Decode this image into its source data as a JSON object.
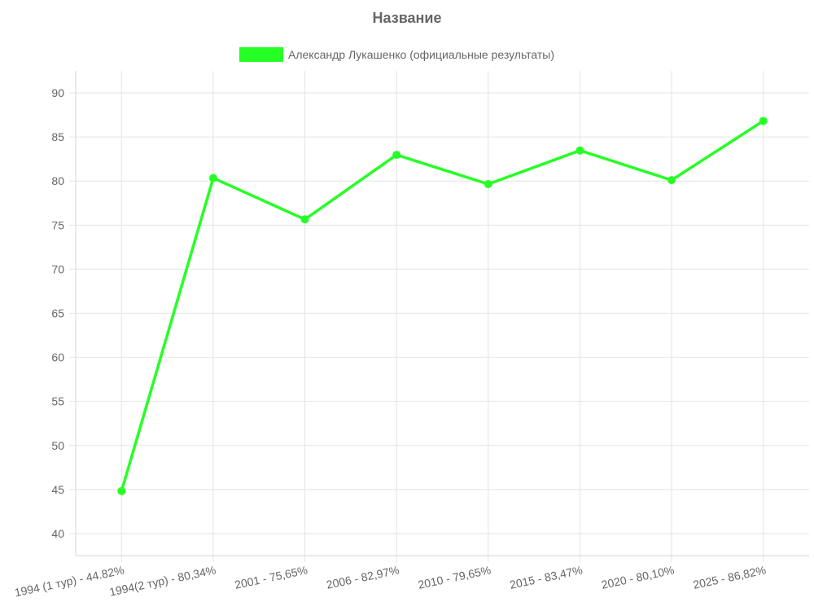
{
  "chart_data": {
    "type": "line",
    "title": "Название",
    "xlabel": "",
    "ylabel": "",
    "categories": [
      "1994 (1 тур) - 44.82%",
      "1994(2 тур) - 80,34%",
      "2001 - 75,65%",
      "2006 - 82,97%",
      "2010 - 79,65%",
      "2015 - 83,47%",
      "2020 - 80,10%",
      "2025 - 86,82%"
    ],
    "series": [
      {
        "name": "Александр Лукашенко (официальные результаты)",
        "values": [
          44.82,
          80.34,
          75.65,
          82.97,
          79.65,
          83.47,
          80.1,
          86.82
        ],
        "color": "#26ff26"
      }
    ],
    "ylim": [
      37.5,
      92.5
    ],
    "yticks": [
      40,
      45,
      50,
      55,
      60,
      65,
      70,
      75,
      80,
      85,
      90
    ],
    "grid": true,
    "legend_position": "top-center"
  }
}
